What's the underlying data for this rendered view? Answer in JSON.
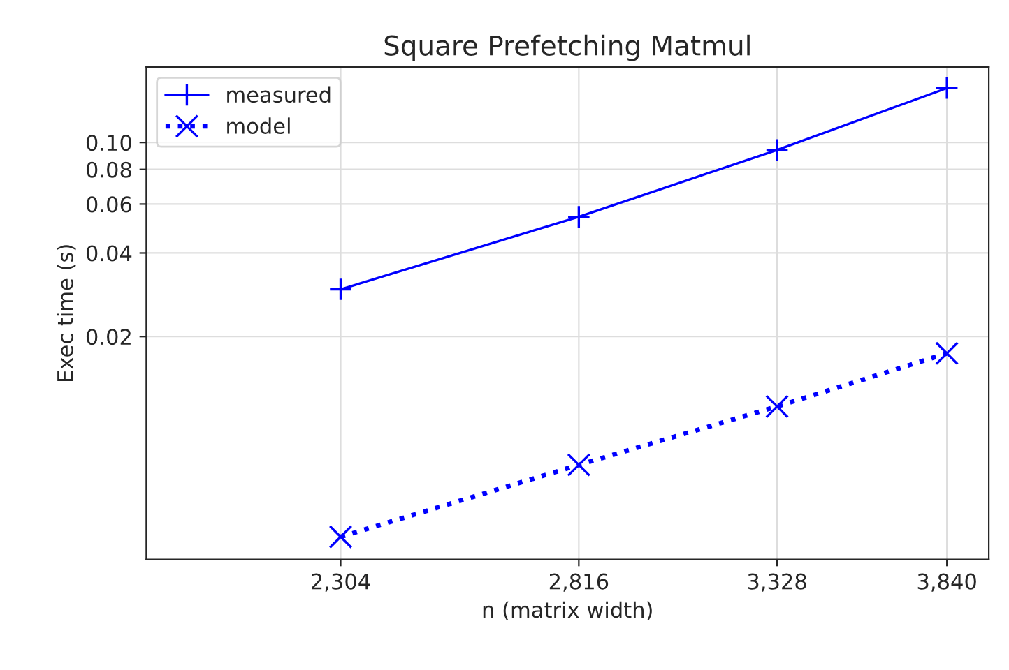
{
  "chart_data": {
    "type": "line",
    "title": "Square Prefetching Matmul",
    "xlabel": "n (matrix width)",
    "ylabel": "Exec time (s)",
    "x": [
      2304,
      2816,
      3328,
      3840
    ],
    "series": [
      {
        "name": "measured",
        "color": "#0000ff",
        "values": [
          0.0296,
          0.054,
          0.094,
          0.157
        ],
        "marker": "plus",
        "line_style": "solid"
      },
      {
        "name": "model",
        "color": "#0000ff",
        "values": [
          0.0038,
          0.0069,
          0.0112,
          0.0174
        ],
        "marker": "cross",
        "line_style": "dotted"
      }
    ],
    "log": "xy",
    "xlim": [
      1956,
      3978
    ],
    "ylim": [
      0.00315,
      0.187
    ],
    "xticks": [
      {
        "value": 2304,
        "label": "2,304"
      },
      {
        "value": 2816,
        "label": "2,816"
      },
      {
        "value": 3328,
        "label": "3,328"
      },
      {
        "value": 3840,
        "label": "3,840"
      }
    ],
    "yticks": [
      {
        "value": 0.02,
        "label": "0.02"
      },
      {
        "value": 0.04,
        "label": "0.04"
      },
      {
        "value": 0.06,
        "label": "0.06"
      },
      {
        "value": 0.08,
        "label": "0.08"
      },
      {
        "value": 0.1,
        "label": "0.10"
      }
    ],
    "grid": true,
    "legend": "top left"
  }
}
